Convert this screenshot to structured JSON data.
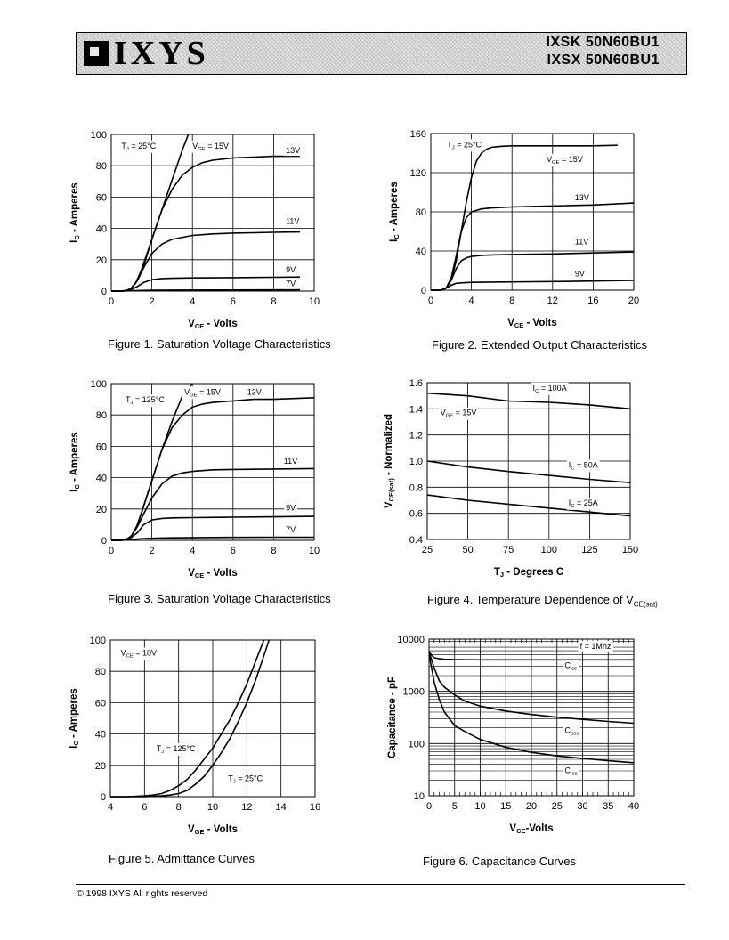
{
  "header": {
    "brand": "IXYS",
    "part1": "IXSK  50N60BU1",
    "part2": "IXSX  50N60BU1"
  },
  "footer": "© 1998 IXYS All rights reserved",
  "figures": [
    {
      "caption": "Figure  1. Saturation Voltage Characteristics",
      "chart_data": {
        "type": "line",
        "xlabel": "V_CE - Volts",
        "ylabel": "I_C - Amperes",
        "xlim": [
          0,
          10
        ],
        "ylim": [
          0,
          100
        ],
        "xticks": [
          0,
          2,
          4,
          6,
          8,
          10
        ],
        "yticks": [
          0,
          20,
          40,
          60,
          80,
          100
        ],
        "grid": true,
        "annotations": [
          {
            "text": "T_J = 25°C",
            "x": 0.5,
            "y": 91
          },
          {
            "text": "V_GE = 15V",
            "x": 4.0,
            "y": 91
          },
          {
            "text": "13V",
            "x": 8.6,
            "y": 88
          },
          {
            "text": "11V",
            "x": 8.6,
            "y": 43
          },
          {
            "text": "9V",
            "x": 8.6,
            "y": 12
          },
          {
            "text": "7V",
            "x": 8.6,
            "y": 3
          }
        ],
        "series": [
          {
            "name": "15V",
            "x": [
              0,
              0.5,
              0.8,
              1.0,
              1.2,
              1.5,
              2.0,
              2.5,
              3.0,
              3.5,
              3.8
            ],
            "y": [
              0,
              0,
              0.5,
              2,
              5,
              14,
              33,
              52,
              71,
              90,
              100
            ]
          },
          {
            "name": "13V",
            "x": [
              0,
              0.5,
              0.8,
              1.0,
              1.3,
              1.6,
              2.0,
              2.5,
              3.0,
              3.5,
              4.0,
              4.5,
              5.0,
              6.0,
              7.0,
              8.0,
              9.3
            ],
            "y": [
              0,
              0,
              0.5,
              2,
              7,
              16,
              33,
              52,
              65,
              74,
              79,
              82,
              83.5,
              85,
              85.5,
              86,
              86
            ]
          },
          {
            "name": "11V",
            "x": [
              0,
              0.5,
              0.8,
              1.0,
              1.3,
              1.6,
              2.0,
              2.5,
              3.0,
              4.0,
              5.0,
              6.0,
              7.0,
              8.0,
              9.3
            ],
            "y": [
              0,
              0,
              0.5,
              2,
              7,
              15,
              24,
              30,
              33,
              35.5,
              36.5,
              37,
              37.2,
              37.5,
              37.7
            ]
          },
          {
            "name": "9V",
            "x": [
              0,
              0.6,
              1.0,
              1.3,
              1.6,
              2.0,
              2.5,
              3.0,
              4.0,
              6.0,
              8.0,
              9.3
            ],
            "y": [
              0,
              0,
              1,
              3,
              5.5,
              7.3,
              8,
              8.2,
              8.4,
              8.6,
              8.8,
              9
            ]
          },
          {
            "name": "7V",
            "x": [
              0,
              0.6,
              1.0,
              1.5,
              2.0,
              3.0,
              5.0,
              9.3
            ],
            "y": [
              0,
              0,
              0.2,
              0.4,
              0.5,
              0.6,
              0.7,
              0.8
            ]
          }
        ]
      }
    },
    {
      "caption": "Figure  2. Extended Output  Characteristics",
      "chart_data": {
        "type": "line",
        "xlabel": "V_CE - Volts",
        "ylabel": "I_C - Amperes",
        "xlim": [
          0,
          20
        ],
        "ylim": [
          0,
          160
        ],
        "xticks": [
          0,
          4,
          8,
          12,
          16,
          20
        ],
        "yticks": [
          0,
          40,
          80,
          120,
          160
        ],
        "grid": true,
        "annotations": [
          {
            "text": "T_J = 25°C",
            "x": 1.6,
            "y": 146
          },
          {
            "text": "V_GE = 15V",
            "x": 11.4,
            "y": 131
          },
          {
            "text": "13V",
            "x": 14.2,
            "y": 92
          },
          {
            "text": "11V",
            "x": 14.2,
            "y": 47
          },
          {
            "text": "9V",
            "x": 14.2,
            "y": 14
          }
        ],
        "series": [
          {
            "name": "15V",
            "x": [
              0,
              1.0,
              1.5,
              2.0,
              2.5,
              3.0,
              3.5,
              4.0,
              4.5,
              5.0,
              5.5,
              6.0,
              7.0,
              8.0,
              10,
              12,
              14,
              16,
              18.4
            ],
            "y": [
              0,
              0,
              2,
              10,
              30,
              60,
              90,
              115,
              132,
              140,
              144,
              146,
              147,
              147.5,
              147.5,
              147.5,
              147.5,
              147.5,
              148
            ]
          },
          {
            "name": "13V",
            "x": [
              0,
              1.0,
              1.5,
              2.0,
              2.5,
              3.0,
              3.5,
              4.0,
              5.0,
              6.0,
              8.0,
              10,
              12,
              14,
              16,
              18,
              20
            ],
            "y": [
              0,
              0,
              2,
              12,
              35,
              60,
              74,
              80,
              83,
              84,
              85,
              85.5,
              86,
              86.5,
              87,
              88,
              89
            ]
          },
          {
            "name": "11V",
            "x": [
              0,
              1.0,
              1.5,
              2.0,
              2.5,
              3.0,
              3.5,
              4.0,
              5.0,
              6.0,
              8.0,
              12,
              16,
              20
            ],
            "y": [
              0,
              0,
              2,
              10,
              22,
              30,
              33,
              34.5,
              35.5,
              36,
              36.5,
              37,
              38,
              39
            ]
          },
          {
            "name": "9V",
            "x": [
              0,
              1.0,
              1.5,
              2.0,
              2.5,
              3.0,
              4.0,
              6.0,
              10,
              14,
              20
            ],
            "y": [
              0,
              0,
              2,
              5,
              7,
              7.5,
              8,
              8.3,
              8.6,
              9,
              10
            ]
          }
        ]
      }
    },
    {
      "caption": "Figure  3. Saturation Voltage Characteristics",
      "chart_data": {
        "type": "line",
        "xlabel": "V_CE - Volts",
        "ylabel": "I_C - Amperes",
        "xlim": [
          0,
          10
        ],
        "ylim": [
          0,
          100
        ],
        "xticks": [
          0,
          2,
          4,
          6,
          8,
          10
        ],
        "yticks": [
          0,
          20,
          40,
          60,
          80,
          100
        ],
        "grid": true,
        "annotations": [
          {
            "text": "T_J = 125°C",
            "x": 0.7,
            "y": 88
          },
          {
            "text": "V_GE = 15V",
            "x": 3.6,
            "y": 93
          },
          {
            "text": "13V",
            "x": 6.7,
            "y": 93
          },
          {
            "text": "11V",
            "x": 8.5,
            "y": 49
          },
          {
            "text": "9V",
            "x": 8.6,
            "y": 19
          },
          {
            "text": "7V",
            "x": 8.6,
            "y": 5
          }
        ],
        "series": [
          {
            "name": "15V",
            "x": [
              0,
              0.5,
              0.8,
              1.0,
              1.2,
              1.5,
              2.0,
              2.5,
              3.0,
              3.5,
              4.0
            ],
            "y": [
              0,
              0,
              1,
              3,
              7,
              18,
              38,
              58,
              76,
              92,
              100
            ]
          },
          {
            "name": "13V",
            "x": [
              0,
              0.5,
              0.8,
              1.0,
              1.3,
              1.6,
              2.0,
              2.5,
              3.0,
              3.5,
              4.0,
              4.5,
              5.0,
              6.0,
              7.0,
              8.0,
              10
            ],
            "y": [
              0,
              0,
              1,
              3,
              10,
              22,
              38,
              58,
              72,
              80,
              85,
              87,
              88,
              89,
              90,
              90,
              91
            ]
          },
          {
            "name": "11V",
            "x": [
              0,
              0.5,
              0.8,
              1.0,
              1.3,
              1.6,
              2.0,
              2.5,
              3.0,
              3.5,
              4.0,
              5.0,
              6.0,
              8.0,
              10
            ],
            "y": [
              0,
              0,
              1,
              3,
              9,
              17,
              27,
              36,
              41,
              43,
              44,
              45,
              45.2,
              45.5,
              45.8
            ]
          },
          {
            "name": "9V",
            "x": [
              0,
              0.5,
              0.8,
              1.0,
              1.3,
              1.6,
              2.0,
              2.5,
              3.0,
              4.0,
              6.0,
              8.0,
              10
            ],
            "y": [
              0,
              0,
              0.5,
              2,
              5,
              10,
              13,
              14,
              14.3,
              14.5,
              14.8,
              15,
              15.3
            ]
          },
          {
            "name": "7V",
            "x": [
              0,
              0.5,
              1.0,
              1.5,
              2.0,
              3.0,
              5.0,
              8.0,
              10
            ],
            "y": [
              0,
              0,
              0.5,
              1,
              1.3,
              1.6,
              1.8,
              2,
              2
            ]
          }
        ]
      }
    },
    {
      "caption": "Figure  4. Temperature Dependence of V",
      "caption_sub": "CE(sat)",
      "chart_data": {
        "type": "line",
        "xlabel": "T_J - Degrees C",
        "ylabel": "V_CE(sat) - Normalized",
        "xlim": [
          25,
          150
        ],
        "ylim": [
          0.4,
          1.6
        ],
        "xticks": [
          25,
          50,
          75,
          100,
          125,
          150
        ],
        "yticks": [
          0.4,
          0.6,
          0.8,
          1.0,
          1.2,
          1.4,
          1.6
        ],
        "grid": true,
        "annotations": [
          {
            "text": "I_C = 100A",
            "x": 90,
            "y": 1.54
          },
          {
            "text": "V_GE = 15V",
            "x": 33,
            "y": 1.35
          },
          {
            "text": "I_C = 50A",
            "x": 112,
            "y": 0.95
          },
          {
            "text": "I_C = 25A",
            "x": 112,
            "y": 0.66
          }
        ],
        "series": [
          {
            "name": "I_C = 100A",
            "x": [
              25,
              50,
              75,
              100,
              125,
              150
            ],
            "y": [
              1.52,
              1.5,
              1.46,
              1.45,
              1.43,
              1.4
            ]
          },
          {
            "name": "I_C = 50A",
            "x": [
              25,
              50,
              75,
              100,
              125,
              150
            ],
            "y": [
              1.0,
              0.955,
              0.92,
              0.89,
              0.86,
              0.835
            ]
          },
          {
            "name": "I_C = 25A",
            "x": [
              25,
              50,
              75,
              100,
              125,
              150
            ],
            "y": [
              0.74,
              0.7,
              0.67,
              0.64,
              0.61,
              0.58
            ]
          }
        ]
      }
    },
    {
      "caption": "Figure  5. Admittance Curves",
      "chart_data": {
        "type": "line",
        "xlabel": "V_GE - Volts",
        "ylabel": "I_C - Amperes",
        "xlim": [
          4,
          16
        ],
        "ylim": [
          0,
          100
        ],
        "xticks": [
          4,
          6,
          8,
          10,
          12,
          14,
          16
        ],
        "yticks": [
          0,
          20,
          40,
          60,
          80,
          100
        ],
        "grid": true,
        "annotations": [
          {
            "text": "V_CE = 10V",
            "x": 4.6,
            "y": 90
          },
          {
            "text": "T_J = 125°C",
            "x": 6.7,
            "y": 29
          },
          {
            "text": "T_J = 25°C",
            "x": 10.9,
            "y": 10
          }
        ],
        "series": [
          {
            "name": "T_J = 125°C",
            "x": [
              4,
              5,
              6,
              6.5,
              7,
              7.5,
              8,
              8.5,
              9,
              9.5,
              10,
              10.5,
              11,
              11.5,
              12,
              12.5,
              13
            ],
            "y": [
              0,
              0,
              0.5,
              1,
              2,
              4,
              7,
              11,
              17,
              24,
              31,
              40,
              49,
              60,
              72,
              86,
              100
            ]
          },
          {
            "name": "T_J = 25°C",
            "x": [
              4,
              6,
              7,
              7.5,
              8,
              8.5,
              9,
              9.5,
              10,
              10.5,
              11,
              11.5,
              12,
              12.5,
              13,
              13.3
            ],
            "y": [
              0,
              0,
              0.5,
              1,
              2,
              4,
              8,
              13,
              20,
              28,
              37,
              48,
              60,
              74,
              90,
              100
            ]
          }
        ]
      }
    },
    {
      "caption": "Figure  6.  Capacitance Curves",
      "chart_data": {
        "type": "line",
        "log_y": true,
        "xlabel": "V_CE-Volts",
        "ylabel": "Capacitance - pF",
        "xlim": [
          0,
          40
        ],
        "ylim": [
          10,
          10000
        ],
        "xticks": [
          0,
          5,
          10,
          15,
          20,
          25,
          30,
          35,
          40
        ],
        "yticks": [
          10,
          100,
          1000,
          10000
        ],
        "grid": true,
        "annotations": [
          {
            "text": "f = 1Mhz",
            "x": 29.5,
            "y": 6500
          },
          {
            "text": "C_iss",
            "x": 26.5,
            "y": 2800
          },
          {
            "text": "C_oss",
            "x": 26.5,
            "y": 160
          },
          {
            "text": "C_rss",
            "x": 26.5,
            "y": 27
          }
        ],
        "series": [
          {
            "name": "C_iss",
            "x": [
              0,
              0.5,
              1,
              2,
              3,
              5,
              10,
              20,
              30,
              40
            ],
            "y": [
              5800,
              4900,
              4400,
              4200,
              4100,
              4050,
              4000,
              4000,
              4000,
              4000
            ]
          },
          {
            "name": "C_oss",
            "x": [
              0,
              0.5,
              1,
              2,
              3,
              5,
              7,
              10,
              15,
              20,
              25,
              30,
              35,
              40
            ],
            "y": [
              5500,
              4000,
              2800,
              1600,
              1200,
              850,
              650,
              520,
              420,
              360,
              320,
              290,
              265,
              245
            ]
          },
          {
            "name": "C_rss",
            "x": [
              0,
              0.5,
              1,
              2,
              3,
              5,
              7,
              10,
              15,
              20,
              25,
              30,
              35,
              40
            ],
            "y": [
              5000,
              2800,
              1500,
              700,
              400,
              220,
              170,
              120,
              85,
              68,
              58,
              52,
              47,
              43
            ]
          }
        ]
      }
    }
  ]
}
